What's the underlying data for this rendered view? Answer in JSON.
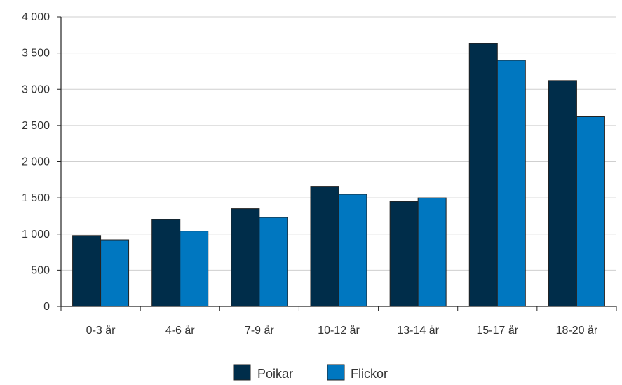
{
  "colors": {
    "poikar": "#002d4a",
    "flickor": "#0077c0",
    "grid": "#cfcfcf",
    "axis": "#222222",
    "bar_edge": "#222222"
  },
  "chart_data": {
    "type": "bar",
    "title": "",
    "xlabel": "",
    "ylabel": "",
    "categories": [
      "0-3 år",
      "4-6 år",
      "7-9 år",
      "10-12 år",
      "13-14 år",
      "15-17 år",
      "18-20 år"
    ],
    "series": [
      {
        "name": "Poikar",
        "values": [
          980,
          1200,
          1350,
          1660,
          1450,
          3630,
          3120
        ]
      },
      {
        "name": "Flickor",
        "values": [
          920,
          1040,
          1230,
          1550,
          1500,
          3400,
          2620
        ]
      }
    ],
    "ylim": [
      0,
      4000
    ],
    "yticks": [
      0,
      500,
      1000,
      1500,
      2000,
      2500,
      3000,
      3500,
      4000
    ],
    "ytick_labels": [
      "0",
      "500",
      "1 000",
      "1 500",
      "2 000",
      "2 500",
      "3 000",
      "3 500",
      "4 000"
    ],
    "grid": true,
    "legend_position": "bottom-center"
  }
}
